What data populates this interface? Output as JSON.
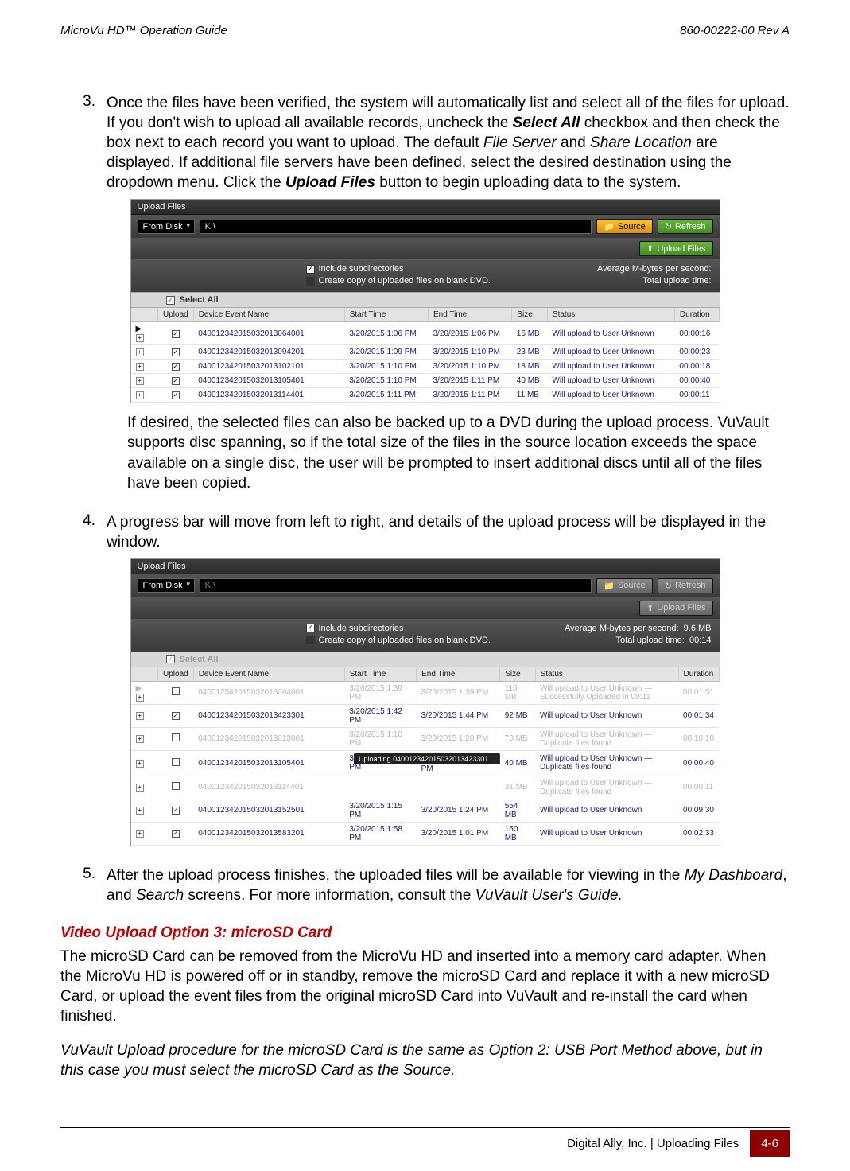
{
  "header": {
    "left": "MicroVu HD™ Operation Guide",
    "right": "860-00222-00 Rev A"
  },
  "step3": {
    "num": "3.",
    "text_parts": {
      "p1": "Once the files have been verified, the system will automatically list and select all of the files for upload. If you don't wish to upload all available records, uncheck the ",
      "select_all": "Select All",
      "p2": " checkbox and then check the box next to each record you want to upload. The default ",
      "file_server": "File Server",
      "p3": " and ",
      "share_location": "Share Location",
      "p4": " are displayed. If additional file servers have been defined, select the desired destination using the dropdown menu. Click the ",
      "upload_files": "Upload Files",
      "p5": " button to begin uploading data to the system."
    },
    "after_ss": "If desired, the selected files can also be backed up to a DVD during the upload process. VuVault supports disc spanning, so if the total size of the files in the source location exceeds the space available on a single disc, the user will be prompted to insert additional discs until all of the files have been copied."
  },
  "step4": {
    "num": "4.",
    "text": "A progress bar will move from left to right, and details of the upload process will be displayed in the window."
  },
  "step5": {
    "num": "5.",
    "p1": "After the upload process finishes, the uploaded files will be available for viewing in the ",
    "my_dashboard": "My Dashboard",
    "p2": ", and ",
    "search": "Search",
    "p3": " screens. For more information, consult the ",
    "guide": "VuVault User's Guide.",
    "p4": ""
  },
  "section3": {
    "title": "Video Upload Option 3: microSD Card",
    "para": "The microSD Card can be removed from the MicroVu HD and inserted into a memory card adapter. When the MicroVu HD is powered off or in standby, remove the microSD Card and replace it with a new microSD Card, or upload the event files from the original microSD Card into VuVault and re-install the card when finished.",
    "italic": "VuVault Upload procedure for the microSD Card is the same as Option 2: USB Port Method above, but in this case you must select the microSD Card as the Source."
  },
  "footer": {
    "text": "Digital Ally, Inc. | Uploading Files",
    "page": "4-6"
  },
  "ss_common": {
    "title": "Upload Files",
    "from_disk": "From Disk",
    "path": "K:\\",
    "source_btn": "Source",
    "refresh_btn": "Refresh",
    "upload_btn": "Upload Files",
    "opt_include": "Include subdirectories",
    "opt_dvd": "Create copy of uploaded files on blank DVD.",
    "avg_label": "Average M-bytes per second:",
    "total_label": "Total upload time:",
    "select_all": "Select All",
    "cols": {
      "upload": "Upload",
      "name": "Device Event Name",
      "start": "Start Time",
      "end": "End Time",
      "size": "Size",
      "status": "Status",
      "duration": "Duration"
    }
  },
  "ss1": {
    "rows": [
      {
        "chk": true,
        "name": "040012342015032013064001",
        "start": "3/20/2015 1:06 PM",
        "end": "3/20/2015 1:06 PM",
        "size": "16 MB",
        "status": "Will upload to User Unknown",
        "dur": "00:00:16"
      },
      {
        "chk": true,
        "name": "040012342015032013094201",
        "start": "3/20/2015 1:09 PM",
        "end": "3/20/2015 1:10 PM",
        "size": "23 MB",
        "status": "Will upload to User Unknown",
        "dur": "00:00:23"
      },
      {
        "chk": true,
        "name": "040012342015032013102101",
        "start": "3/20/2015 1:10 PM",
        "end": "3/20/2015 1:10 PM",
        "size": "18 MB",
        "status": "Will upload to User Unknown",
        "dur": "00:00:18"
      },
      {
        "chk": true,
        "name": "040012342015032013105401",
        "start": "3/20/2015 1:10 PM",
        "end": "3/20/2015 1:11 PM",
        "size": "40 MB",
        "status": "Will upload to User Unknown",
        "dur": "00:00:40"
      },
      {
        "chk": true,
        "name": "040012342015032013114401",
        "start": "3/20/2015 1:11 PM",
        "end": "3/20/2015 1:11 PM",
        "size": "11 MB",
        "status": "Will upload to User Unknown",
        "dur": "00:00:11"
      }
    ]
  },
  "ss2": {
    "avg_val": "9.6 MB",
    "total_val": "00:14",
    "uploading_label": "Uploading 040012342015032013423301…",
    "rows": [
      {
        "faded": true,
        "chk": false,
        "name": "040012342015032013064001",
        "start": "3/20/2015 1:39 PM",
        "end": "3/20/2015 1:39 PM",
        "size": "110 MB",
        "status": "Will upload to User Unknown — Successfully Uploaded in 00:11",
        "dur": "00:01:51"
      },
      {
        "faded": false,
        "chk": true,
        "name": "040012342015032013423301",
        "start": "3/20/2015 1:42 PM",
        "end": "3/20/2015 1:44 PM",
        "size": "92 MB",
        "status": "Will upload to User Unknown",
        "dur": "00:01:34"
      },
      {
        "faded": true,
        "chk": false,
        "name": "040012342015032013013001",
        "start": "3/20/2015 1:10 PM",
        "end": "3/20/2015 1:20 PM",
        "size": "70 MB",
        "status": "Will upload to User Unknown — Duplicate files found",
        "dur": "00:10:10"
      },
      {
        "faded": false,
        "chk": false,
        "name": "040012342015032013105401",
        "start": "3/20/2015 1:10 PM",
        "end": "3/20/2015 1:11 PM",
        "size": "40 MB",
        "status": "Will upload to User Unknown — Duplicate files found",
        "dur": "00:00:40",
        "spinner": true
      },
      {
        "faded": true,
        "chk": false,
        "name": "040012342015032013114401",
        "start": "",
        "end": "",
        "size": "31 MB",
        "status": "Will upload to User Unknown — Duplicate files found",
        "dur": "00:00:11"
      },
      {
        "faded": false,
        "chk": true,
        "name": "040012342015032013152501",
        "start": "3/20/2015 1:15 PM",
        "end": "3/20/2015 1:24 PM",
        "size": "554 MB",
        "status": "Will upload to User Unknown",
        "dur": "00:09:30"
      },
      {
        "faded": false,
        "chk": true,
        "name": "040012342015032013583201",
        "start": "3/20/2015 1:58 PM",
        "end": "3/20/2015 1:01 PM",
        "size": "150 MB",
        "status": "Will upload to User Unknown",
        "dur": "00:02:33"
      }
    ]
  }
}
